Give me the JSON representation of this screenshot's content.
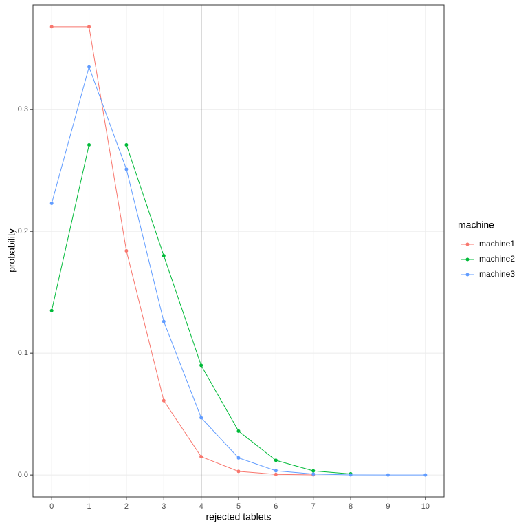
{
  "chart_data": {
    "type": "line",
    "x_label": "rejected tablets",
    "y_label": "probability",
    "x": [
      0,
      1,
      2,
      3,
      4,
      5,
      6,
      7,
      8,
      9,
      10
    ],
    "series": [
      {
        "name": "machine1",
        "color": "#F8766D",
        "values": [
          0.368,
          0.368,
          0.184,
          0.061,
          0.015,
          0.003,
          0.0005,
          0.0001,
          null,
          null,
          null
        ]
      },
      {
        "name": "machine2",
        "color": "#00BA38",
        "values": [
          0.135,
          0.271,
          0.271,
          0.18,
          0.09,
          0.036,
          0.012,
          0.0034,
          0.0009,
          null,
          null
        ]
      },
      {
        "name": "machine3",
        "color": "#619CFF",
        "values": [
          0.223,
          0.335,
          0.251,
          0.126,
          0.047,
          0.014,
          0.0035,
          0.0008,
          0.0001,
          0,
          0
        ]
      }
    ],
    "legend_title": "machine",
    "legend": "right",
    "vline": 4,
    "xlim": [
      -0.5,
      10.5
    ],
    "xticks": [
      0,
      1,
      2,
      3,
      4,
      5,
      6,
      7,
      8,
      9,
      10
    ],
    "ylim": [
      -0.018,
      0.386
    ],
    "yticks": [
      {
        "value": 0,
        "label": "0.0"
      },
      0.1,
      0.2,
      0.3
    ],
    "grid": true
  }
}
